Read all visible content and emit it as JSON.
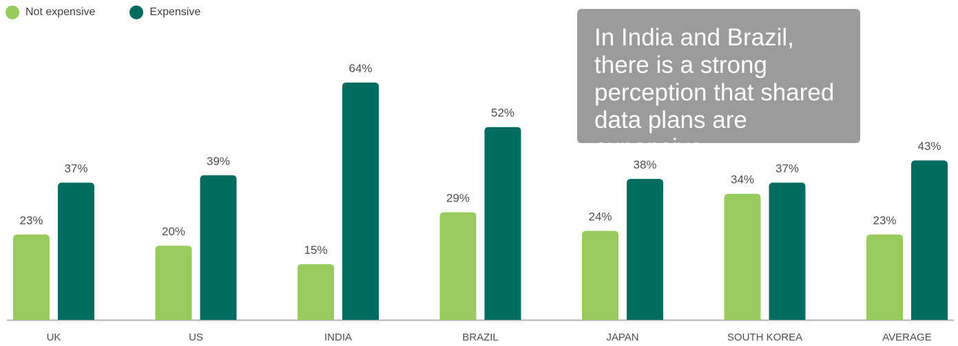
{
  "colors": {
    "not_expensive": "#97cb5e",
    "expensive": "#006b60",
    "label_text": "#4d4d4d",
    "axis": "#b3b3b3",
    "callout_bg": "#9b9b9b"
  },
  "legend": {
    "items": [
      {
        "label": "Not expensive",
        "color": "#97cb5e"
      },
      {
        "label": "Expensive",
        "color": "#006b60"
      }
    ]
  },
  "callout": {
    "text": "In India and Brazil, there is a strong perception that shared data plans are expensive"
  },
  "chart_data": {
    "type": "bar",
    "categories": [
      "UK",
      "US",
      "INDIA",
      "BRAZIL",
      "JAPAN",
      "SOUTH KOREA",
      "AVERAGE"
    ],
    "series": [
      {
        "name": "Not expensive",
        "values": [
          23,
          20,
          15,
          29,
          24,
          34,
          23
        ]
      },
      {
        "name": "Expensive",
        "values": [
          37,
          39,
          64,
          52,
          38,
          37,
          43
        ]
      }
    ],
    "value_suffix": "%",
    "ylim": [
      0,
      68
    ],
    "grid": false,
    "legend_position": "top-left"
  }
}
